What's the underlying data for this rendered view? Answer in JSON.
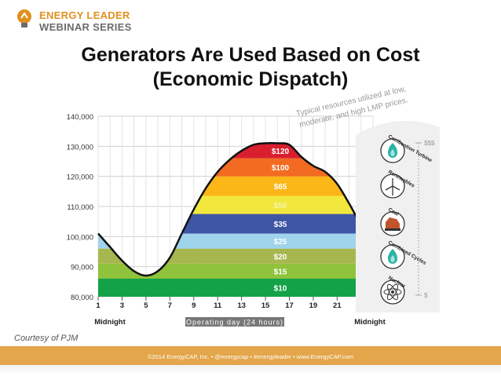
{
  "logo": {
    "line1": "ENERGY LEADER",
    "line2": "WEBINAR SERIES"
  },
  "title": {
    "line1": "Generators Are Used Based on Cost",
    "line2": "(Economic Dispatch)"
  },
  "courtesy": "Courtesy of PJM",
  "footer": "©2014 EnergyCAP, Inc. • @energycap • #energyleader • www.EnergyCAP.com",
  "colors": {
    "accent": "#e3a64a",
    "curve": "#111111"
  },
  "chart_data": {
    "type": "area",
    "ylim": [
      80000,
      140000
    ],
    "yticks": [
      "80,000",
      "90,000",
      "100,000",
      "110,000",
      "120,000",
      "130,000",
      "140,000"
    ],
    "xlim": [
      1,
      24
    ],
    "xticks": [
      "1",
      "3",
      "5",
      "7",
      "9",
      "11",
      "13",
      "15",
      "17",
      "19",
      "21",
      "23"
    ],
    "x_start_label": "Midnight",
    "x_end_label": "Midnight",
    "x_axis_title": "Operating day (24 hours)",
    "grid": true,
    "load_curve": {
      "x": [
        1,
        2,
        3,
        4,
        5,
        6,
        7,
        8,
        9,
        10,
        11,
        12,
        13,
        14,
        15,
        16,
        17,
        18,
        19,
        20,
        21,
        22,
        23,
        24
      ],
      "y": [
        101000,
        96500,
        92000,
        88500,
        87000,
        88500,
        93000,
        101000,
        109000,
        116000,
        121500,
        125500,
        128500,
        130500,
        131000,
        131000,
        130500,
        126500,
        123500,
        121500,
        117500,
        111000,
        104000,
        100000
      ]
    },
    "bands": [
      {
        "label": "$10",
        "from": 80000,
        "to": 86000,
        "color": "#14a249",
        "label_color": "#ffffff"
      },
      {
        "label": "$15",
        "from": 86000,
        "to": 91000,
        "color": "#8fc33b",
        "label_color": "#ffffff"
      },
      {
        "label": "$20",
        "from": 91000,
        "to": 96000,
        "color": "#a7b74f",
        "label_color": "#ffffff"
      },
      {
        "label": "$25",
        "from": 96000,
        "to": 101000,
        "color": "#9fd3ec",
        "label_color": "#ffffff"
      },
      {
        "label": "$35",
        "from": 101000,
        "to": 107500,
        "color": "#3f56a5",
        "label_color": "#ffffff"
      },
      {
        "label": "$50",
        "from": 107500,
        "to": 113500,
        "color": "#f2e83d",
        "label_color": "#f6f2a8"
      },
      {
        "label": "$65",
        "from": 113500,
        "to": 120000,
        "color": "#fbb617",
        "label_color": "#ffffff"
      },
      {
        "label": "$100",
        "from": 120000,
        "to": 126000,
        "color": "#f26b21",
        "label_color": "#ffffff"
      },
      {
        "label": "$120",
        "from": 126000,
        "to": 131000,
        "color": "#d91f2e",
        "label_color": "#ffffff"
      }
    ],
    "annotation": "Typical resources utilized at low, moderate, and high LMP prices.",
    "resources": [
      {
        "label": "Combustion Turbine",
        "icon": "flame-icon"
      },
      {
        "label": "Renewables",
        "icon": "wind-turbine-icon"
      },
      {
        "label": "Coal",
        "icon": "coal-icon"
      },
      {
        "label": "Combined Cycles",
        "icon": "flame-icon"
      },
      {
        "label": "Nuclear",
        "icon": "atom-icon"
      }
    ],
    "price_scale": {
      "high": "$$$",
      "low": "$"
    }
  }
}
